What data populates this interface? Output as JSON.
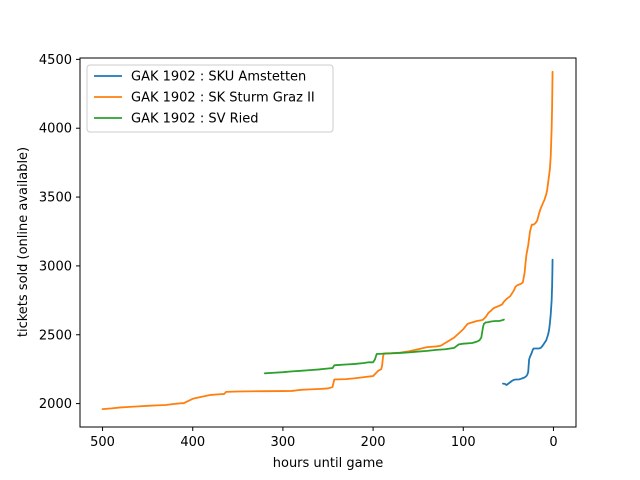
{
  "chart_data": {
    "type": "line",
    "xlabel": "hours until game",
    "ylabel": "tickets sold (online available)",
    "xlim": [
      525,
      -25
    ],
    "ylim": [
      1830,
      4510
    ],
    "x_inverted": true,
    "xticks": [
      500,
      400,
      300,
      200,
      100,
      0
    ],
    "yticks": [
      2000,
      2500,
      3000,
      3500,
      4000,
      4500
    ],
    "grid": false,
    "legend_position": "top-left",
    "series": [
      {
        "name": "GAK 1902 : SKU Amstetten",
        "color": "#1f77b4",
        "x": [
          56,
          54,
          52,
          50,
          48,
          46,
          44,
          42,
          40,
          38,
          36,
          34,
          32,
          30,
          29,
          28,
          27,
          26,
          25,
          24,
          23,
          22,
          20,
          18,
          16,
          14,
          12,
          10,
          8,
          6,
          5,
          4,
          3,
          2.5,
          2,
          1.5,
          1.2,
          1
        ],
        "y": [
          2145,
          2143,
          2135,
          2145,
          2155,
          2165,
          2172,
          2175,
          2175,
          2176,
          2180,
          2185,
          2190,
          2200,
          2210,
          2230,
          2320,
          2340,
          2355,
          2370,
          2390,
          2400,
          2400,
          2400,
          2400,
          2405,
          2420,
          2440,
          2460,
          2500,
          2530,
          2580,
          2650,
          2700,
          2750,
          2850,
          2950,
          3045
        ]
      },
      {
        "name": "GAK 1902 : SK Sturm Graz II",
        "color": "#ff7f0e",
        "x": [
          500,
          490,
          480,
          470,
          460,
          450,
          440,
          430,
          420,
          412,
          410,
          400,
          390,
          380,
          370,
          365,
          363,
          350,
          340,
          320,
          300,
          290,
          285,
          280,
          270,
          260,
          250,
          245,
          243,
          230,
          220,
          210,
          200,
          197,
          194,
          191,
          190,
          189,
          188,
          180,
          170,
          160,
          150,
          140,
          130,
          125,
          120,
          115,
          110,
          105,
          100,
          97,
          95,
          90,
          85,
          80,
          78,
          75,
          72,
          70,
          67,
          64,
          62,
          60,
          57,
          55,
          52,
          50,
          48,
          46,
          44,
          42,
          40,
          38,
          36,
          34,
          32,
          31,
          30,
          28,
          26,
          24,
          22,
          20,
          18,
          16,
          14,
          12,
          10,
          8,
          7,
          6,
          5,
          4,
          3,
          2.5,
          2,
          1.5,
          1
        ],
        "y": [
          1960,
          1965,
          1972,
          1976,
          1980,
          1984,
          1987,
          1990,
          1998,
          2003,
          2003,
          2035,
          2050,
          2063,
          2068,
          2070,
          2085,
          2088,
          2089,
          2090,
          2091,
          2092,
          2096,
          2100,
          2103,
          2106,
          2110,
          2120,
          2175,
          2178,
          2184,
          2192,
          2200,
          2220,
          2240,
          2250,
          2275,
          2340,
          2365,
          2366,
          2370,
          2380,
          2395,
          2410,
          2415,
          2420,
          2440,
          2460,
          2480,
          2510,
          2540,
          2565,
          2580,
          2590,
          2600,
          2605,
          2610,
          2630,
          2660,
          2670,
          2690,
          2700,
          2705,
          2710,
          2720,
          2740,
          2760,
          2770,
          2780,
          2800,
          2820,
          2850,
          2860,
          2865,
          2870,
          2880,
          2950,
          3020,
          3080,
          3150,
          3250,
          3300,
          3300,
          3310,
          3330,
          3380,
          3420,
          3450,
          3480,
          3520,
          3550,
          3600,
          3650,
          3700,
          3800,
          3900,
          4000,
          4150,
          4410
        ]
      },
      {
        "name": "GAK 1902 : SV Ried",
        "color": "#2ca02c",
        "x": [
          320,
          310,
          300,
          290,
          280,
          270,
          260,
          250,
          245,
          243,
          240,
          230,
          220,
          210,
          205,
          200,
          198,
          196,
          190,
          180,
          170,
          160,
          150,
          140,
          130,
          120,
          110,
          105,
          100,
          90,
          85,
          82,
          80,
          79,
          78,
          77,
          76,
          75,
          74,
          72,
          70,
          67,
          64,
          60,
          57,
          55
        ],
        "y": [
          2220,
          2224,
          2228,
          2234,
          2238,
          2243,
          2248,
          2255,
          2258,
          2278,
          2280,
          2284,
          2288,
          2295,
          2300,
          2300,
          2320,
          2360,
          2362,
          2365,
          2368,
          2372,
          2378,
          2383,
          2390,
          2395,
          2405,
          2430,
          2435,
          2440,
          2450,
          2460,
          2480,
          2520,
          2560,
          2580,
          2585,
          2590,
          2590,
          2592,
          2595,
          2598,
          2600,
          2600,
          2605,
          2610
        ]
      }
    ]
  }
}
